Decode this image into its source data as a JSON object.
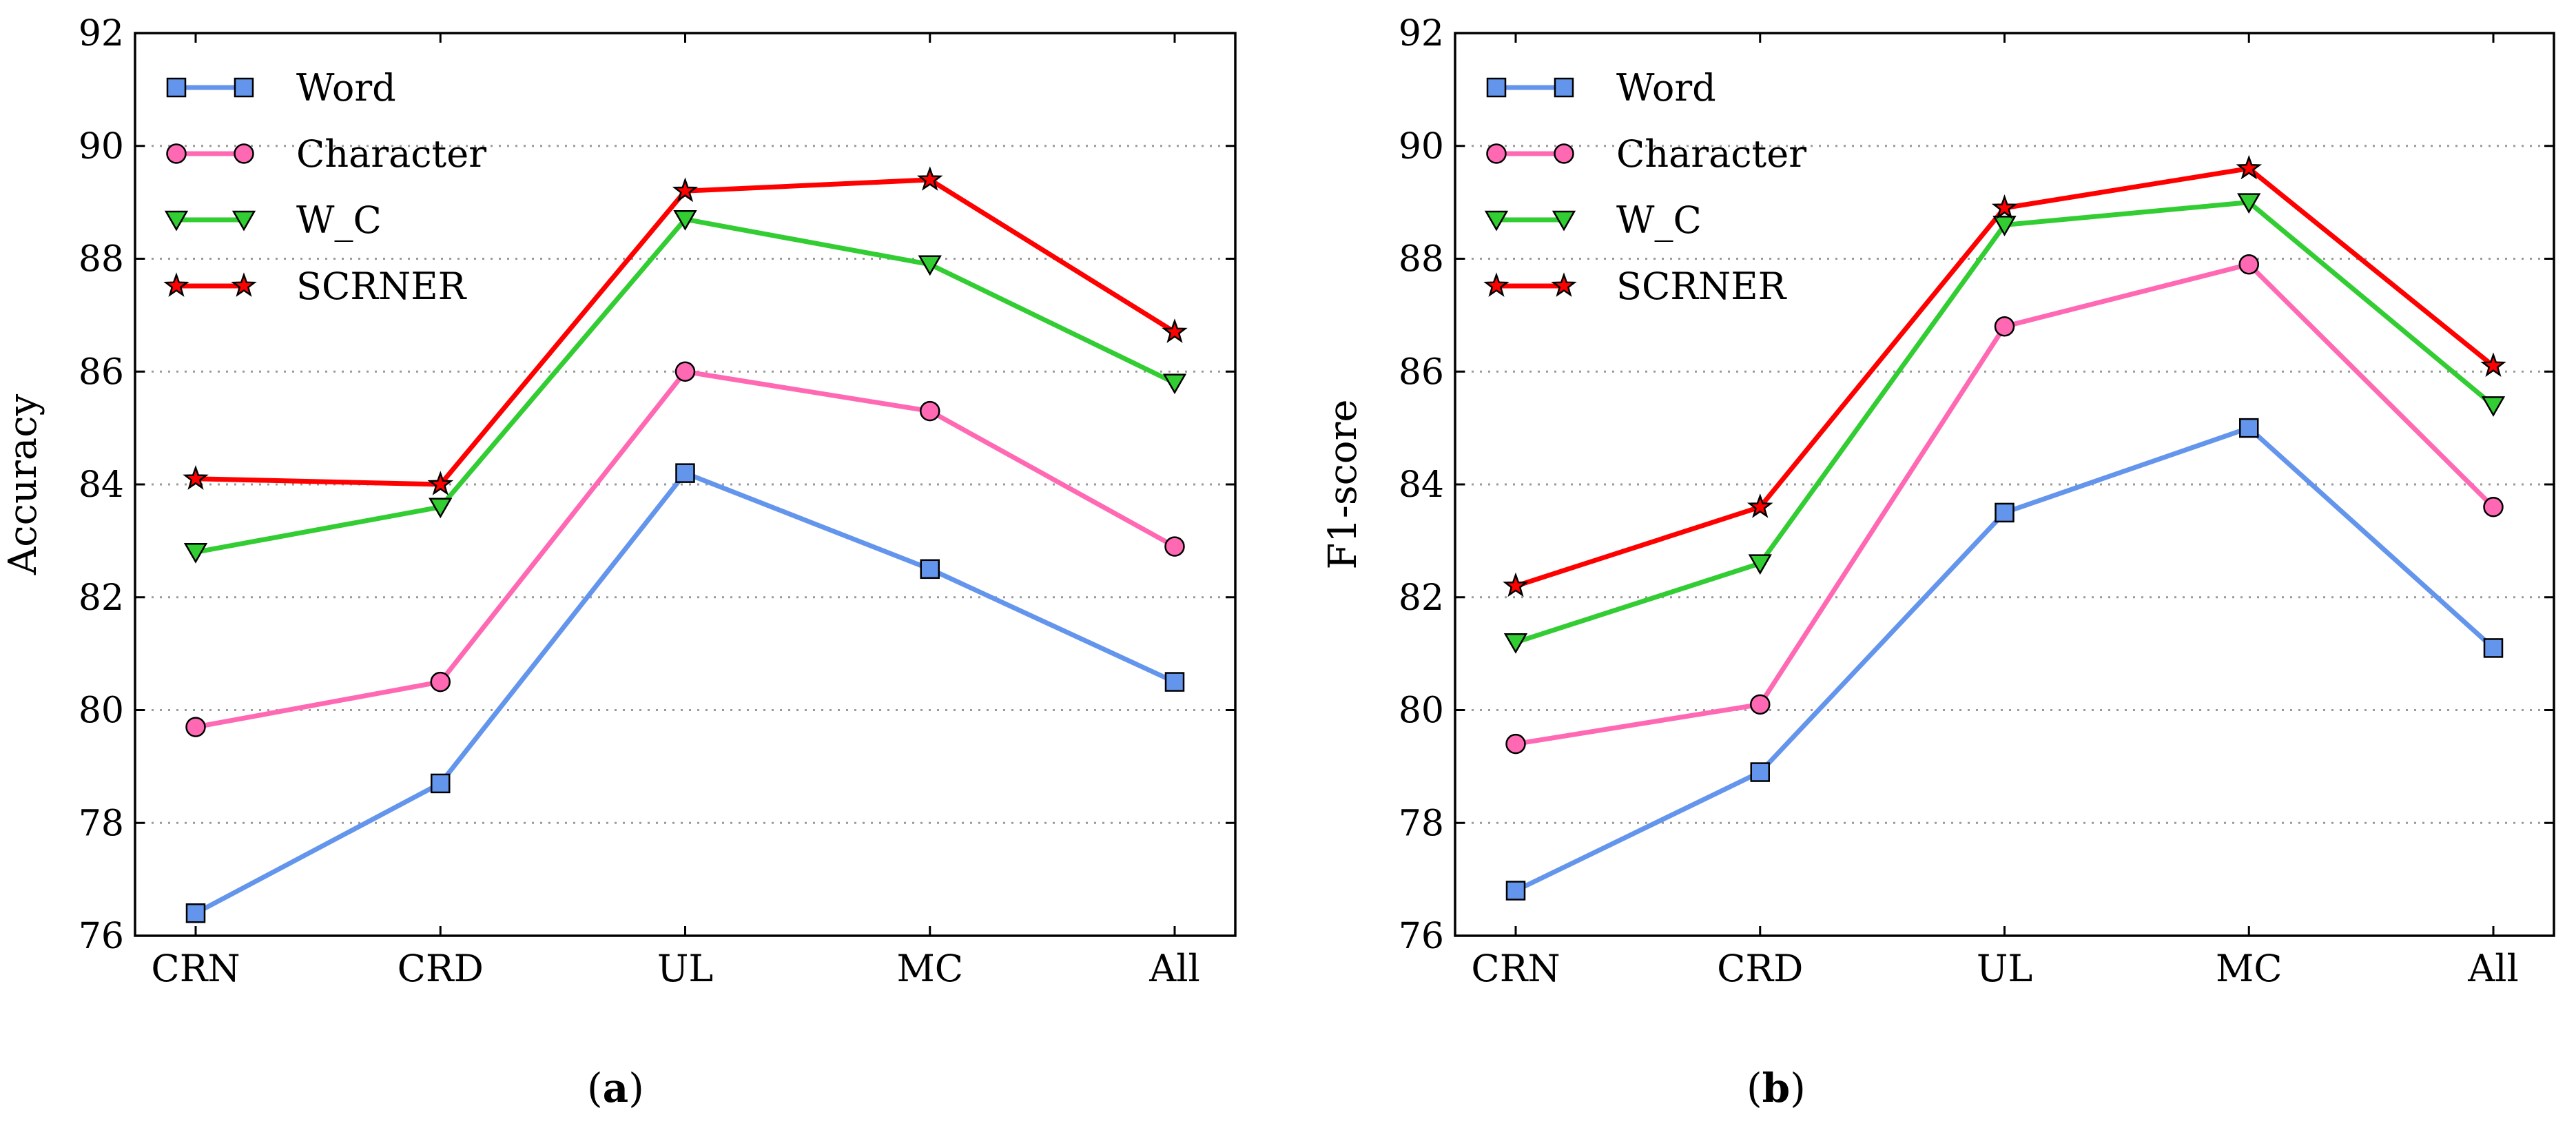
{
  "chart_data": [
    {
      "type": "line",
      "panel_label": "a",
      "ylabel": "Accuracy",
      "xlabel": "",
      "categories": [
        "CRN",
        "CRD",
        "UL",
        "MC",
        "All"
      ],
      "ylim": [
        76,
        92
      ],
      "yticks": [
        76,
        78,
        80,
        82,
        84,
        86,
        88,
        90,
        92
      ],
      "grid": "horizontal dotted",
      "legend_position": "top-left",
      "series": [
        {
          "name": "Word",
          "marker": "square",
          "color": "#6495ed",
          "values": [
            76.4,
            78.7,
            84.2,
            82.5,
            80.5
          ]
        },
        {
          "name": "Character",
          "marker": "circle",
          "color": "#ff69b4",
          "values": [
            79.7,
            80.5,
            86.0,
            85.3,
            82.9
          ]
        },
        {
          "name": "W_C",
          "marker": "triangle-down",
          "color": "#32cd32",
          "values": [
            82.8,
            83.6,
            88.7,
            87.9,
            85.8
          ]
        },
        {
          "name": "SCRNER",
          "marker": "star",
          "color": "#ff0000",
          "values": [
            84.1,
            84.0,
            89.2,
            89.4,
            86.7
          ]
        }
      ]
    },
    {
      "type": "line",
      "panel_label": "b",
      "ylabel": "F1-score",
      "xlabel": "",
      "categories": [
        "CRN",
        "CRD",
        "UL",
        "MC",
        "All"
      ],
      "ylim": [
        76,
        92
      ],
      "yticks": [
        76,
        78,
        80,
        82,
        84,
        86,
        88,
        90,
        92
      ],
      "grid": "horizontal dotted",
      "legend_position": "top-left",
      "series": [
        {
          "name": "Word",
          "marker": "square",
          "color": "#6495ed",
          "values": [
            76.8,
            78.9,
            83.5,
            85.0,
            81.1
          ]
        },
        {
          "name": "Character",
          "marker": "circle",
          "color": "#ff69b4",
          "values": [
            79.4,
            80.1,
            86.8,
            87.9,
            83.6
          ]
        },
        {
          "name": "W_C",
          "marker": "triangle-down",
          "color": "#32cd32",
          "values": [
            81.2,
            82.6,
            88.6,
            89.0,
            85.4
          ]
        },
        {
          "name": "SCRNER",
          "marker": "star",
          "color": "#ff0000",
          "values": [
            82.2,
            83.6,
            88.9,
            89.6,
            86.1
          ]
        }
      ]
    }
  ]
}
